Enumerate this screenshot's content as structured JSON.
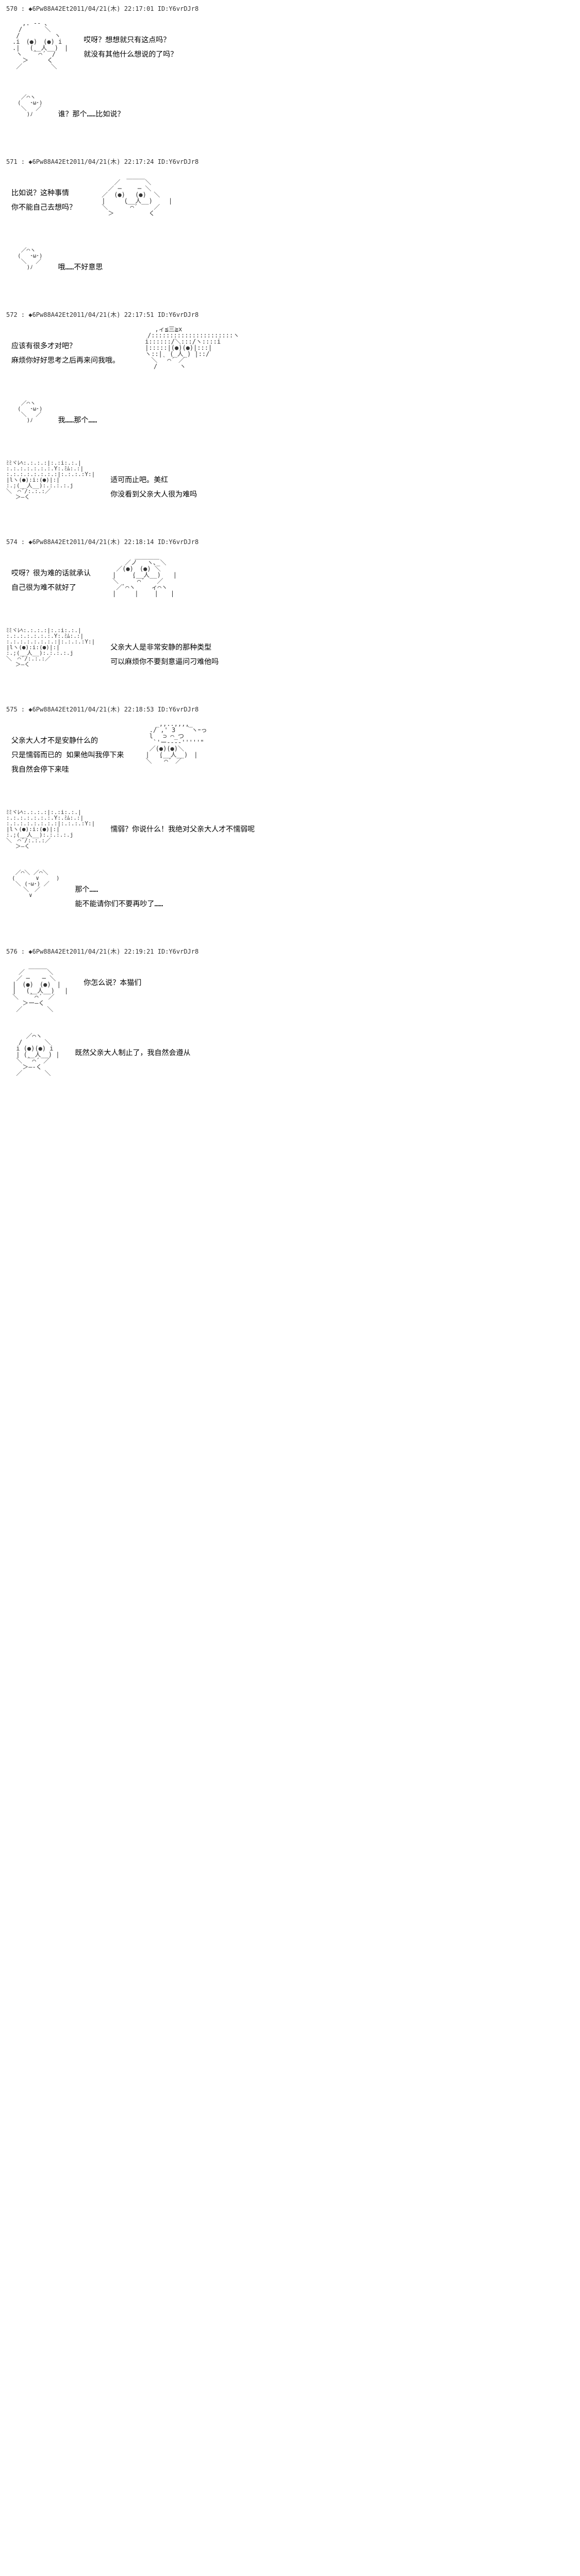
{
  "posts": [
    {
      "num": "570",
      "id": "◆6Pw88A42Et2011/04/21(木) 22:17:01 ID:Y6vrDJr8",
      "blocks": [
        {
          "aa": "char1",
          "dlg": [
            "哎呀？想想就只有这点吗？",
            "就没有其他什么想说的了吗？"
          ],
          "side": "right",
          "aasize": "lg"
        },
        {
          "aa": "face1",
          "dlg": [
            "谁？那个……比如说？"
          ],
          "side": "right"
        }
      ]
    },
    {
      "num": "571",
      "id": "◆6Pw88A42Et2011/04/21(木) 22:17:24 ID:Y6vrDJr8",
      "blocks": [
        {
          "aa": "char2",
          "dlg": [
            "比如说？这种事情",
            "你不能自己去想吗？"
          ],
          "side": "left",
          "aasize": "lg"
        },
        {
          "aa": "face1",
          "dlg": [
            "哦……不好意思"
          ],
          "side": "right"
        }
      ]
    },
    {
      "num": "572",
      "id": "◆6Pw88A42Et2011/04/21(木) 22:17:51 ID:Y6vrDJr8",
      "blocks": [
        {
          "aa": "char3",
          "dlg": [
            "应该有很多才对吧？",
            "麻烦你好好思考之后再来问我哦。"
          ],
          "side": "left",
          "aasize": "lg"
        },
        {
          "aa": "face1",
          "dlg": [
            "我……那个……"
          ],
          "side": "right"
        },
        {
          "aa": "char4",
          "dlg": [
            "适可而止吧。美红",
            "你没看到父亲大人很为难吗"
          ],
          "side": "right"
        }
      ]
    },
    {
      "num": "574",
      "id": "◆6Pw88A42Et2011/04/21(木) 22:18:14 ID:Y6vrDJr8",
      "blocks": [
        {
          "aa": "char5",
          "dlg": [
            "哎呀？很为难的话就承认",
            "自己很为难不就好了"
          ],
          "side": "left",
          "aasize": "lg"
        },
        {
          "aa": "char4",
          "dlg": [
            "父亲大人是非常安静的那种类型",
            "可以麻烦你不要刻意逼问刁难他吗"
          ],
          "side": "right"
        }
      ]
    },
    {
      "num": "575",
      "id": "◆6Pw88A42Et2011/04/21(木) 22:18:53 ID:Y6vrDJr8",
      "blocks": [
        {
          "aa": "char6",
          "dlg": [
            "父亲大人才不是安静什么的",
            "只是懦弱而已的   如果他叫我停下来",
            "我自然会停下来哇"
          ],
          "side": "left",
          "aasize": "lg"
        },
        {
          "aa": "char4",
          "dlg": [
            "懦弱？你说什么！我绝对父亲大人才不懦弱呢"
          ],
          "side": "right"
        },
        {
          "aa": "face2",
          "dlg": [
            "那个……",
            "能不能请你们不要再吵了……"
          ],
          "side": "right"
        }
      ]
    },
    {
      "num": "576",
      "id": "◆6Pw88A42Et2011/04/21(木) 22:19:21 ID:Y6vrDJr8",
      "blocks": [
        {
          "aa": "char7",
          "dlg": [
            "你怎么说？本猫们"
          ],
          "side": "right",
          "aasize": "lg"
        },
        {
          "aa": "char8",
          "dlg": [
            "既然父亲大人制止了，我自然会遵从"
          ],
          "side": "right",
          "aasize": "lg"
        }
      ]
    }
  ],
  "aa": {
    "char1": "　　 ,. -‐ ､\n　　/　 　　＼\n　 /　　　　　 ヽ\n　.i　(●)　(●) i\n　.|　 (__人__)　|\n　 ヽ　 ｀⌒´　/\n　　 ＞　　　く\n　 ／　　　　 ＼",
    "char2": "　　　　　 ＿＿＿\n　　　 ／　　　　＼\n　　 ／ ─　　 ─ ＼\n　 ／　(●)　 (●)  ＼\n　 |　　　(__人__)　　 |\n　 ＼　　 ｀⌒´　　 ／\n　　 ＞　　　　　 く",
    "char3": "　 　 ,ィ≦三≧x\n　　/::::::::::::::::::::::ヽ\n　 i::::::/＼:::/ヽ::::i\n　 |:::::|(●)(●)|:::|\n　 ヽ::|  (_人_) |::/\n　　 ＼ ｀⌒´ ／\n　　　/　　　 ヽ",
    "char4": "ﾐﾐヾﾚﾍ:.:.:.:|:.:i:.:.|\n:.:.:.:.:.:.:.Y:.ﾐﾑ:.:|\n:.:.:.:.:.:.:.:|:.:.:.:Y:|\n|lヽ(●):i:(●)|:|\n:.:(__人__):.:.:.:.j\n＼｀⌒´/:.:.:／\n　 ＞―く",
    "char5": "　　　　 ＿＿＿＿\n　　　／ノ　 ヽ､_＼\n　 ／(●)　(●) ＼\n　|　　 (__人__)　　|\n　＼　　｀⌒´　　／\n　 ／ﾞ⌒ヽ　　 ィ⌒ヽ\n　|　　　|　　 |　　|",
    "char6": "　　 _,,..,,,,_\n　 ./ ,' 3　 ｀ヽｰっ\n　 l　 ⊃ ⌒_つ\n　  `'ー---‐'''''\"\n　 ／(●)(●)＼\n　|　 (__人__)　|\n　＼　｀⌒´ ／",
    "char7": "　　　 ＿＿＿\n　　／　　　 ＼\n　 ／ ─　　─ ＼\n　|　(●)　(●)　|\n　|　 (__人__)　 |\n　＼　 ｀⌒´　／\n　　 ＞ー―く\n　 ／　　　　＼",
    "char8": "　 　 ／⌒ヽ\n　　/　　　 ＼\n　 i (●)(●) i\n　 | (__人__) |\n　 ＼ ｀⌒´ ／\n　　 ＞―-く\n　 ／　　　 ＼",
    "face1": "　　 ／⌒ヽ\n　　(　 ･ω･)\n　　 ＼　 ／\n　　　 )ﾉ",
    "face2": "　 ／⌒＼ ／⌒＼\n　(　　　 ∨　　　)\n　 ＼ (･ω･) ／\n　　　＼　／\n　　　　∨"
  }
}
